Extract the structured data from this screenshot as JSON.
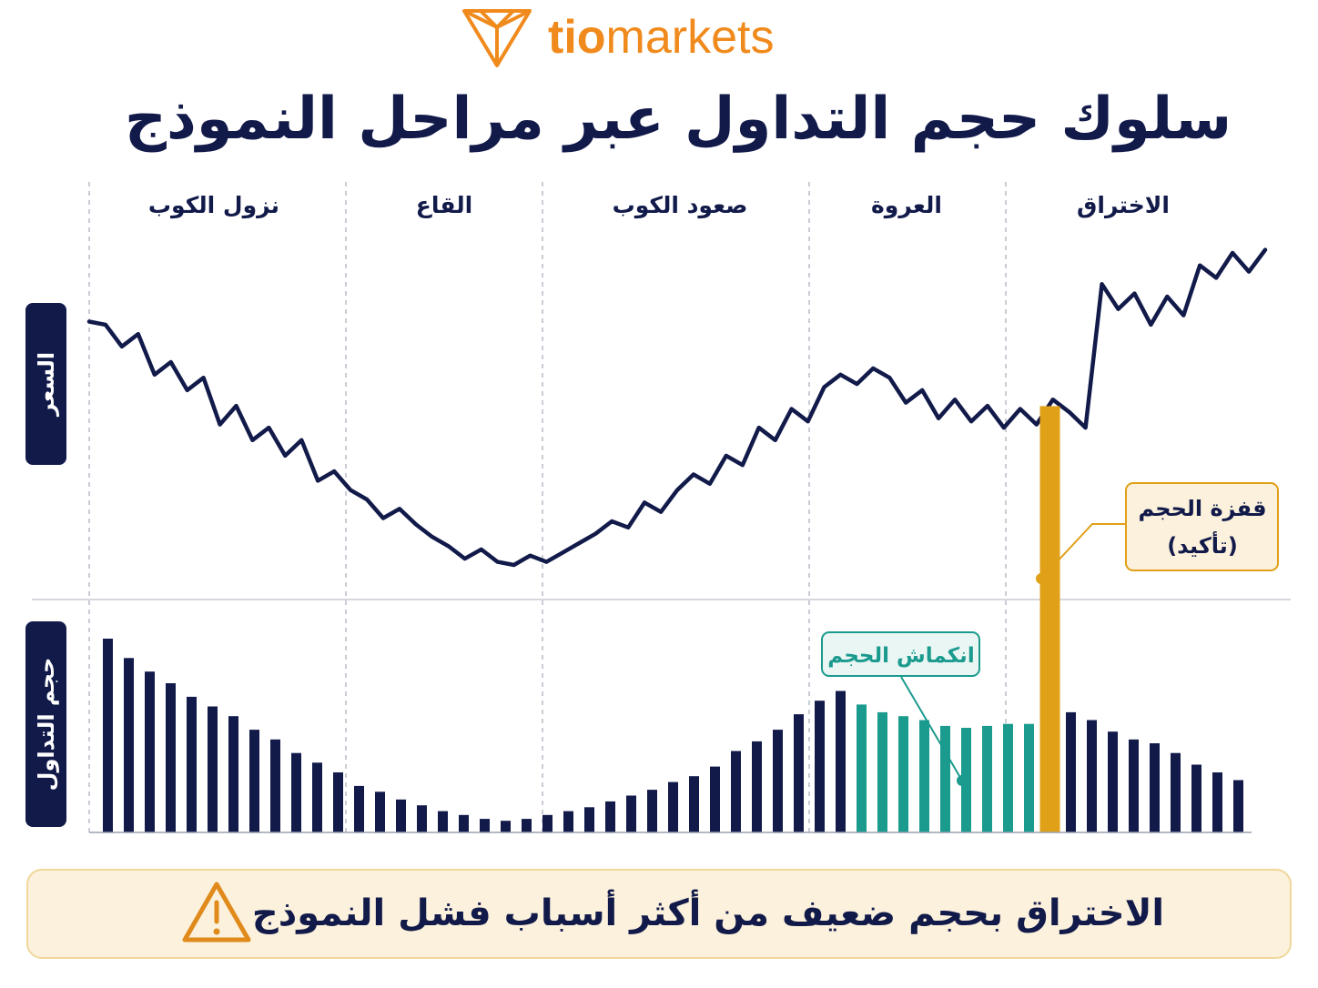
{
  "brand": {
    "name_part1": "tio",
    "name_part2": "markets",
    "icon": "tio-logo-gem-icon",
    "color": "#F08A1C"
  },
  "title": "سلوك حجم التداول عبر مراحل النموذج",
  "axis_labels": {
    "price": "السعر",
    "volume": "حجم التداول"
  },
  "phases": [
    {
      "name": "نزول الكوب"
    },
    {
      "name": "القاع"
    },
    {
      "name": "صعود الكوب"
    },
    {
      "name": "العروة"
    },
    {
      "name": "الاختراق"
    }
  ],
  "callouts": {
    "volume_spike_line1": "قفزة الحجم",
    "volume_spike_line2": "(تأكيد)",
    "volume_contraction": "انكماش الحجم"
  },
  "warning": {
    "text": "الاختراق بحجم ضعيف من أكثر أسباب فشل النموذج",
    "icon": "warning-triangle-icon"
  },
  "colors": {
    "navy": "#121A4A",
    "teal": "#1B9A8E",
    "gold": "#E0A017",
    "orange": "#F08A1C",
    "warning_bg": "#FBF1DC",
    "warning_border": "#F0D79A"
  },
  "chart_data": {
    "type": "line+bar",
    "price": [
      88,
      87,
      80,
      84,
      71,
      75,
      66,
      70,
      55,
      61,
      50,
      54,
      45,
      50,
      37,
      40,
      34,
      31,
      25,
      28,
      23,
      19,
      16,
      12,
      15,
      11,
      10,
      13,
      11,
      14,
      17,
      20,
      24,
      22,
      30,
      27,
      34,
      39,
      36,
      45,
      42,
      54,
      50,
      60,
      56,
      67,
      71,
      68,
      73,
      70,
      62,
      66,
      57,
      63,
      56,
      61,
      54,
      60,
      55,
      63,
      59,
      54,
      100,
      92,
      97,
      87,
      96,
      90,
      106,
      102,
      110,
      104,
      111
    ],
    "volume": [
      100,
      90,
      83,
      77,
      70,
      65,
      60,
      53,
      48,
      41,
      36,
      31,
      24,
      21,
      17,
      14,
      11,
      9,
      7,
      6,
      7,
      9,
      11,
      13,
      16,
      19,
      22,
      26,
      29,
      34,
      42,
      47,
      53,
      61,
      68,
      73,
      66,
      62,
      60,
      58,
      55,
      54,
      55,
      56,
      56,
      220,
      62,
      58,
      52,
      48,
      46,
      41,
      35,
      31,
      27
    ],
    "volume_colors": [
      "navy",
      "navy",
      "navy",
      "navy",
      "navy",
      "navy",
      "navy",
      "navy",
      "navy",
      "navy",
      "navy",
      "navy",
      "navy",
      "navy",
      "navy",
      "navy",
      "navy",
      "navy",
      "navy",
      "navy",
      "navy",
      "navy",
      "navy",
      "navy",
      "navy",
      "navy",
      "navy",
      "navy",
      "navy",
      "navy",
      "navy",
      "navy",
      "navy",
      "navy",
      "navy",
      "navy",
      "teal",
      "teal",
      "teal",
      "teal",
      "teal",
      "teal",
      "teal",
      "teal",
      "teal",
      "gold",
      "navy",
      "navy",
      "navy",
      "navy",
      "navy",
      "navy",
      "navy",
      "navy",
      "navy"
    ]
  }
}
